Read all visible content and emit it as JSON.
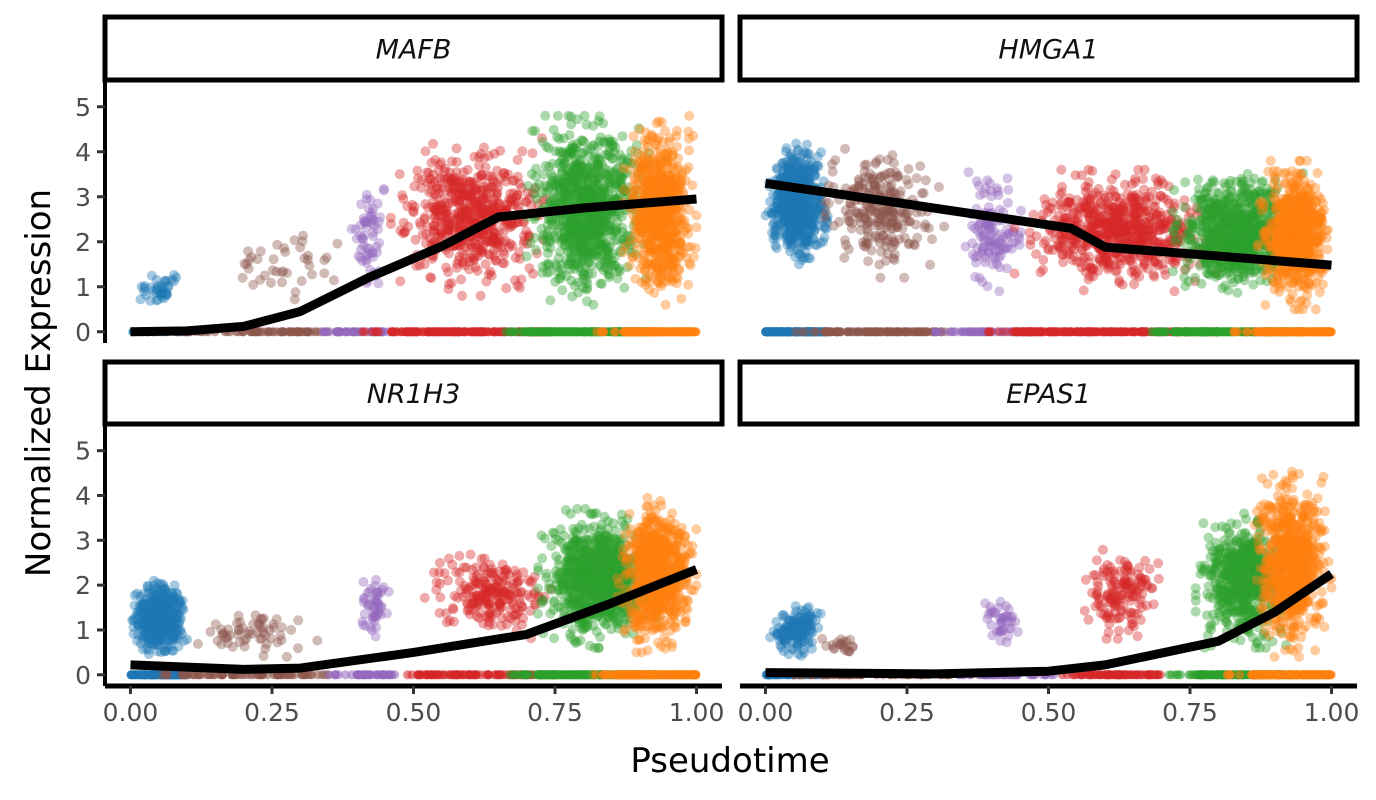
{
  "chart_data": {
    "type": "scatter",
    "ylabel": "Normalized Expression",
    "xlabel": "Pseudotime",
    "xlim": [
      0,
      1
    ],
    "ylim": [
      0,
      5
    ],
    "x_ticks": [
      "0.00",
      "0.25",
      "0.50",
      "0.75",
      "1.00"
    ],
    "y_ticks": [
      "0",
      "1",
      "2",
      "3",
      "4",
      "5"
    ],
    "grid": false,
    "legend": "none",
    "point_colors": [
      "#1f77b4",
      "#8c564b",
      "#9467bd",
      "#d62728",
      "#2ca02c",
      "#ff7f0e"
    ],
    "trend_color": "#000000",
    "panels": [
      {
        "name": "MAFB",
        "clusters": [
          {
            "color": "#1f77b4",
            "x": [
              0.0,
              0.1
            ],
            "y": [
              0.4,
              1.5
            ],
            "n": 40
          },
          {
            "color": "#8c564b",
            "x": [
              0.12,
              0.4
            ],
            "y": [
              0.3,
              2.6
            ],
            "n": 40
          },
          {
            "color": "#9467bd",
            "x": [
              0.39,
              0.46
            ],
            "y": [
              0.7,
              3.6
            ],
            "n": 60
          },
          {
            "color": "#d62728",
            "x": [
              0.46,
              0.75
            ],
            "y": [
              0.8,
              4.3
            ],
            "n": 600
          },
          {
            "color": "#2ca02c",
            "x": [
              0.7,
              0.92
            ],
            "y": [
              0.6,
              4.8
            ],
            "n": 900
          },
          {
            "color": "#ff7f0e",
            "x": [
              0.87,
              1.0
            ],
            "y": [
              0.6,
              4.8
            ],
            "n": 700
          }
        ],
        "zero_band": {
          "x": [
            0.0,
            1.0
          ]
        },
        "trend": [
          [
            0,
            0
          ],
          [
            0.1,
            0.02
          ],
          [
            0.2,
            0.12
          ],
          [
            0.3,
            0.45
          ],
          [
            0.42,
            1.2
          ],
          [
            0.55,
            1.9
          ],
          [
            0.65,
            2.55
          ],
          [
            0.8,
            2.75
          ],
          [
            1.0,
            2.95
          ]
        ]
      },
      {
        "name": "HMGA1",
        "clusters": [
          {
            "color": "#1f77b4",
            "x": [
              0.0,
              0.11
            ],
            "y": [
              1.5,
              4.2
            ],
            "n": 700
          },
          {
            "color": "#8c564b",
            "x": [
              0.1,
              0.32
            ],
            "y": [
              1.2,
              4.2
            ],
            "n": 250
          },
          {
            "color": "#9467bd",
            "x": [
              0.34,
              0.46
            ],
            "y": [
              0.9,
              3.7
            ],
            "n": 120
          },
          {
            "color": "#d62728",
            "x": [
              0.44,
              0.8
            ],
            "y": [
              0.9,
              3.6
            ],
            "n": 700
          },
          {
            "color": "#2ca02c",
            "x": [
              0.72,
              0.95
            ],
            "y": [
              0.8,
              3.6
            ],
            "n": 800
          },
          {
            "color": "#ff7f0e",
            "x": [
              0.87,
              1.0
            ],
            "y": [
              0.5,
              3.8
            ],
            "n": 700
          }
        ],
        "zero_band": {
          "x": [
            0.0,
            1.0
          ]
        },
        "trend": [
          [
            0,
            3.3
          ],
          [
            0.54,
            2.3
          ],
          [
            0.6,
            1.88
          ],
          [
            1.0,
            1.48
          ]
        ]
      },
      {
        "name": "NR1H3",
        "clusters": [
          {
            "color": "#1f77b4",
            "x": [
              0.0,
              0.1
            ],
            "y": [
              0.4,
              2.1
            ],
            "n": 500
          },
          {
            "color": "#8c564b",
            "x": [
              0.1,
              0.33
            ],
            "y": [
              0.4,
              1.5
            ],
            "n": 60
          },
          {
            "color": "#9467bd",
            "x": [
              0.4,
              0.46
            ],
            "y": [
              0.6,
              2.3
            ],
            "n": 50
          },
          {
            "color": "#d62728",
            "x": [
              0.52,
              0.75
            ],
            "y": [
              0.8,
              2.8
            ],
            "n": 220
          },
          {
            "color": "#2ca02c",
            "x": [
              0.72,
              0.93
            ],
            "y": [
              0.6,
              3.7
            ],
            "n": 900
          },
          {
            "color": "#ff7f0e",
            "x": [
              0.86,
              1.0
            ],
            "y": [
              0.5,
              4.0
            ],
            "n": 700
          }
        ],
        "zero_band": {
          "x": [
            0.0,
            1.0
          ]
        },
        "trend": [
          [
            0,
            0.22
          ],
          [
            0.2,
            0.12
          ],
          [
            0.3,
            0.15
          ],
          [
            0.5,
            0.5
          ],
          [
            0.7,
            0.9
          ],
          [
            0.85,
            1.6
          ],
          [
            1.0,
            2.35
          ]
        ]
      },
      {
        "name": "EPAS1",
        "clusters": [
          {
            "color": "#1f77b4",
            "x": [
              0.0,
              0.11
            ],
            "y": [
              0.4,
              1.6
            ],
            "n": 150
          },
          {
            "color": "#8c564b",
            "x": [
              0.1,
              0.18
            ],
            "y": [
              0.4,
              0.9
            ],
            "n": 20
          },
          {
            "color": "#9467bd",
            "x": [
              0.38,
              0.45
            ],
            "y": [
              0.6,
              1.9
            ],
            "n": 40
          },
          {
            "color": "#d62728",
            "x": [
              0.56,
              0.7
            ],
            "y": [
              0.8,
              2.8
            ],
            "n": 150
          },
          {
            "color": "#2ca02c",
            "x": [
              0.76,
              0.93
            ],
            "y": [
              0.6,
              3.6
            ],
            "n": 600
          },
          {
            "color": "#ff7f0e",
            "x": [
              0.86,
              1.0
            ],
            "y": [
              0.4,
              4.6
            ],
            "n": 700
          }
        ],
        "zero_band": {
          "x": [
            0.0,
            1.0
          ]
        },
        "trend": [
          [
            0,
            0.05
          ],
          [
            0.3,
            0.02
          ],
          [
            0.5,
            0.08
          ],
          [
            0.6,
            0.22
          ],
          [
            0.8,
            0.75
          ],
          [
            0.9,
            1.4
          ],
          [
            1.0,
            2.25
          ]
        ]
      }
    ]
  }
}
